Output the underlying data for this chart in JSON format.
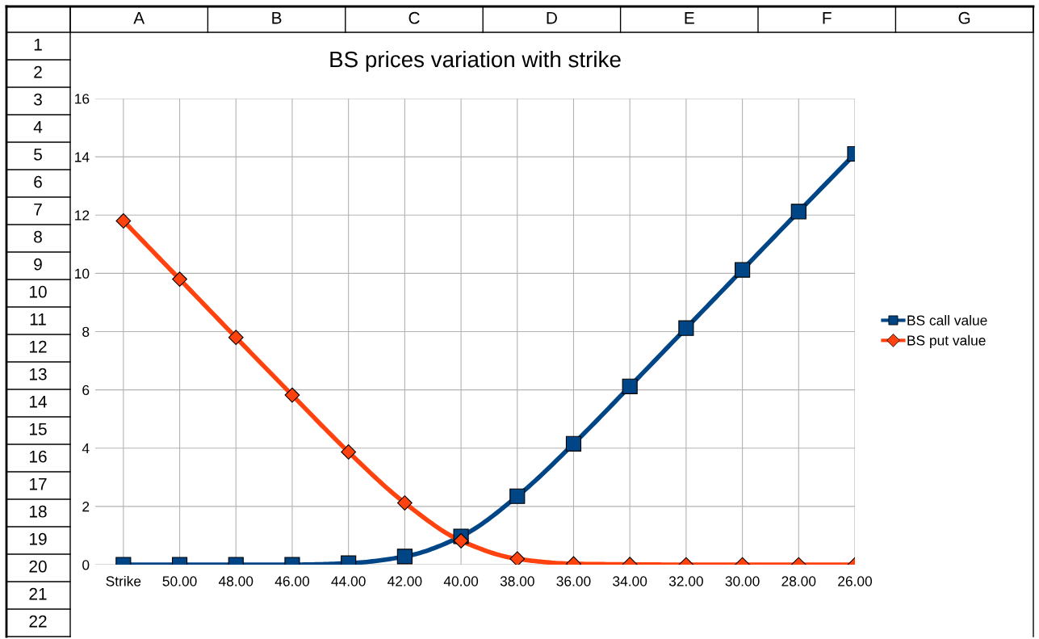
{
  "chart_data": {
    "type": "line",
    "title": "BS prices variation with strike",
    "categories": [
      "Strike",
      "50.00",
      "48.00",
      "46.00",
      "44.00",
      "42.00",
      "40.00",
      "38.00",
      "36.00",
      "34.00",
      "32.00",
      "30.00",
      "28.00",
      "26.00"
    ],
    "series": [
      {
        "name": "BS call value",
        "color": "#004586",
        "marker": "square",
        "values": [
          0,
          0,
          0,
          0,
          0.05,
          0.28,
          0.97,
          2.35,
          4.15,
          6.12,
          8.12,
          10.12,
          12.12,
          14.1
        ]
      },
      {
        "name": "BS put value",
        "color": "#ff420e",
        "marker": "diamond",
        "values": [
          11.8,
          9.8,
          7.8,
          5.82,
          3.87,
          2.12,
          0.82,
          0.2,
          0.03,
          0.01,
          0,
          0,
          0,
          0
        ]
      }
    ],
    "ylim": [
      0,
      16
    ],
    "yticks": [
      0,
      2,
      4,
      6,
      8,
      10,
      12,
      14,
      16
    ],
    "grid": true,
    "legend": "right",
    "line_style": "solid",
    "annotations": [
      "A",
      "B",
      "C",
      "D",
      "E",
      "F",
      "G",
      "1",
      "2",
      "3",
      "4",
      "5",
      "6",
      "7",
      "8",
      "9",
      "10",
      "11",
      "12",
      "13",
      "14",
      "15",
      "16",
      "17",
      "18",
      "19",
      "20",
      "21",
      "22"
    ]
  }
}
